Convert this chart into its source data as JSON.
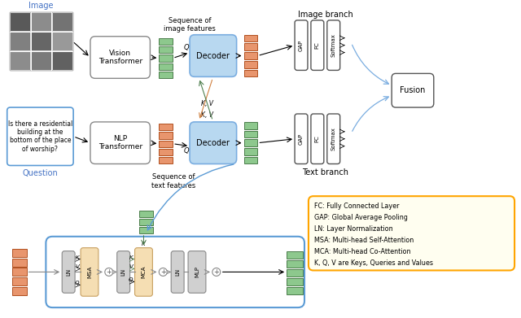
{
  "bg_color": "#ffffff",
  "image_label_color": "#4472c4",
  "question_label_color": "#4472c4",
  "legend_text": [
    "FC: Fully Connected Layer",
    "GAP: Global Average Pooling",
    "LN: Layer Normalization",
    "MSA: Multi-head Self-Attention",
    "MCA: Multi-head Co-Attention",
    "K, Q, V are Keys, Queries and Values"
  ],
  "green_fc": "#8dc88d",
  "green_ec": "#4a7c4a",
  "orange_fc": "#e8956d",
  "orange_ec": "#b05020",
  "decoder_blue": "#b8d8f0",
  "decoder_ec": "#7aade0",
  "bottom_ec": "#5b9bd5",
  "msa_fc": "#f5deb3",
  "msa_ec": "#c8a060",
  "ln_fc": "#d0d0d0",
  "ln_ec": "#888888",
  "mlp_fc": "#d0d0d0",
  "mlp_ec": "#888888",
  "legend_fc": "#fffef0",
  "legend_ec": "#FFA500"
}
